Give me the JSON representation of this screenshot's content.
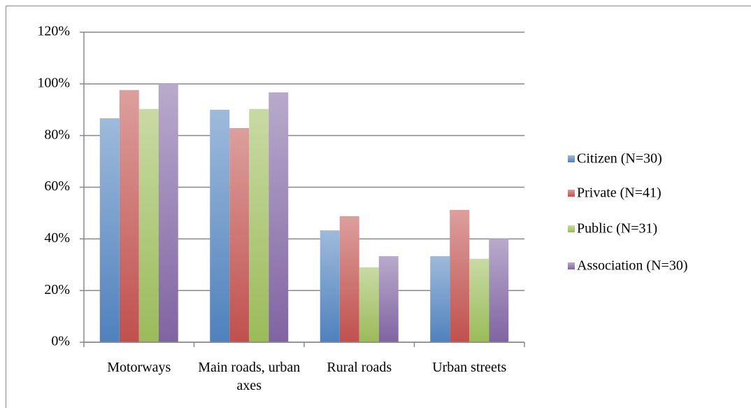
{
  "chart_data": {
    "type": "bar",
    "categories": [
      "Motorways",
      "Main roads, urban axes",
      "Rural roads",
      "Urban streets"
    ],
    "series": [
      {
        "name": "Citizen (N=30)",
        "color": "#4f81bd",
        "values": [
          86.7,
          90.0,
          43.3,
          33.3
        ]
      },
      {
        "name": "Private (N=41)",
        "color": "#c0504d",
        "values": [
          97.6,
          82.9,
          48.8,
          51.2
        ]
      },
      {
        "name": "Public (N=31)",
        "color": "#9bbb59",
        "values": [
          90.3,
          90.3,
          29.0,
          32.3
        ]
      },
      {
        "name": "Association (N=30)",
        "color": "#8064a2",
        "values": [
          100.0,
          96.7,
          33.3,
          40.0
        ]
      }
    ],
    "ylim": [
      0,
      120
    ],
    "yticks": [
      {
        "value": 0,
        "label": "0%"
      },
      {
        "value": 20,
        "label": "20%"
      },
      {
        "value": 40,
        "label": "40%"
      },
      {
        "value": 60,
        "label": "60%"
      },
      {
        "value": 80,
        "label": "80%"
      },
      {
        "value": 100,
        "label": "100%"
      },
      {
        "value": 120,
        "label": "120%"
      }
    ],
    "grid": true,
    "legend": "right"
  }
}
